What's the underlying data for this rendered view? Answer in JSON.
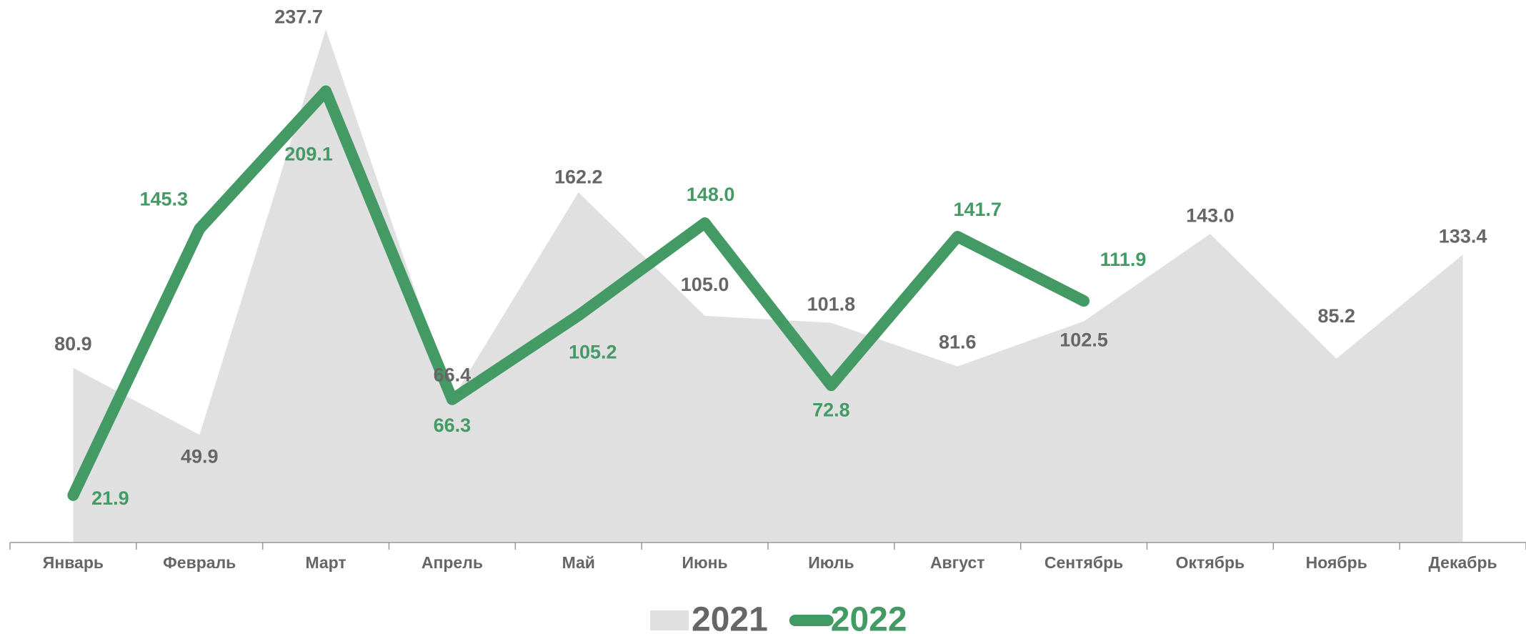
{
  "chart_data": {
    "type": "line",
    "categories": [
      "Январь",
      "Февраль",
      "Март",
      "Апрель",
      "Май",
      "Июнь",
      "Июль",
      "Август",
      "Сентябрь",
      "Октябрь",
      "Ноябрь",
      "Декабрь"
    ],
    "ylim": [
      0,
      250
    ],
    "legend": "bottom",
    "series": [
      {
        "name": "2021",
        "color": "#e0e0e0",
        "label_color": "#666666",
        "kind": "area",
        "values": [
          80.9,
          49.9,
          237.7,
          66.4,
          162.2,
          105.0,
          101.8,
          81.6,
          102.5,
          143.0,
          85.2,
          133.4
        ],
        "value_labels": [
          "80.9",
          "49.9",
          "237.7",
          "66.4",
          "162.2",
          "105.0",
          "101.8",
          "81.6",
          "102.5",
          "143.0",
          "85.2",
          "133.4"
        ]
      },
      {
        "name": "2022",
        "color": "#439a64",
        "label_color": "#439a64",
        "kind": "line",
        "values": [
          21.9,
          145.3,
          209.1,
          66.3,
          105.2,
          148.0,
          72.8,
          141.7,
          111.9,
          null,
          null,
          null
        ],
        "value_labels": [
          "21.9",
          "145.3",
          "209.1",
          "66.3",
          "105.2",
          "148.0",
          "72.8",
          "141.7",
          "111.9",
          null,
          null,
          null
        ]
      }
    ]
  }
}
